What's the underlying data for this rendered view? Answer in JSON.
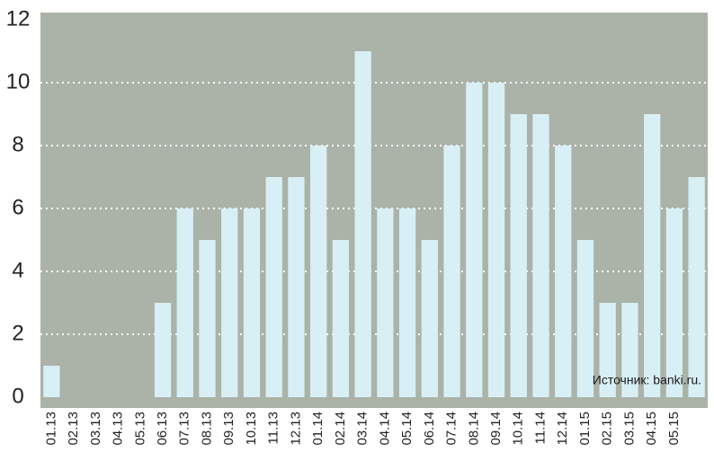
{
  "chart_data": {
    "type": "bar",
    "categories": [
      "01.13",
      "02.13",
      "03.13",
      "04.13",
      "05.13",
      "06.13",
      "07.13",
      "08.13",
      "09.13",
      "10.13",
      "11.13",
      "12.13",
      "01.14",
      "02.14",
      "03.14",
      "04.14",
      "05.14",
      "06.14",
      "07.14",
      "08.14",
      "09.14",
      "10.14",
      "11.14",
      "12.14",
      "01.15",
      "02.15",
      "03.15",
      "04.15",
      "05.15",
      null
    ],
    "values": [
      1,
      0,
      0,
      0,
      0,
      3,
      6,
      5,
      6,
      6,
      7,
      7,
      8,
      5,
      11,
      6,
      6,
      5,
      8,
      10,
      10,
      9,
      9,
      8,
      5,
      3,
      3,
      9,
      6,
      7
    ],
    "color": "#d8eff5",
    "ylim": [
      0,
      12
    ],
    "yticks": [
      0,
      2,
      4,
      6,
      8,
      10,
      12
    ],
    "grid": true,
    "annotation": "Источник: banki.ru."
  }
}
